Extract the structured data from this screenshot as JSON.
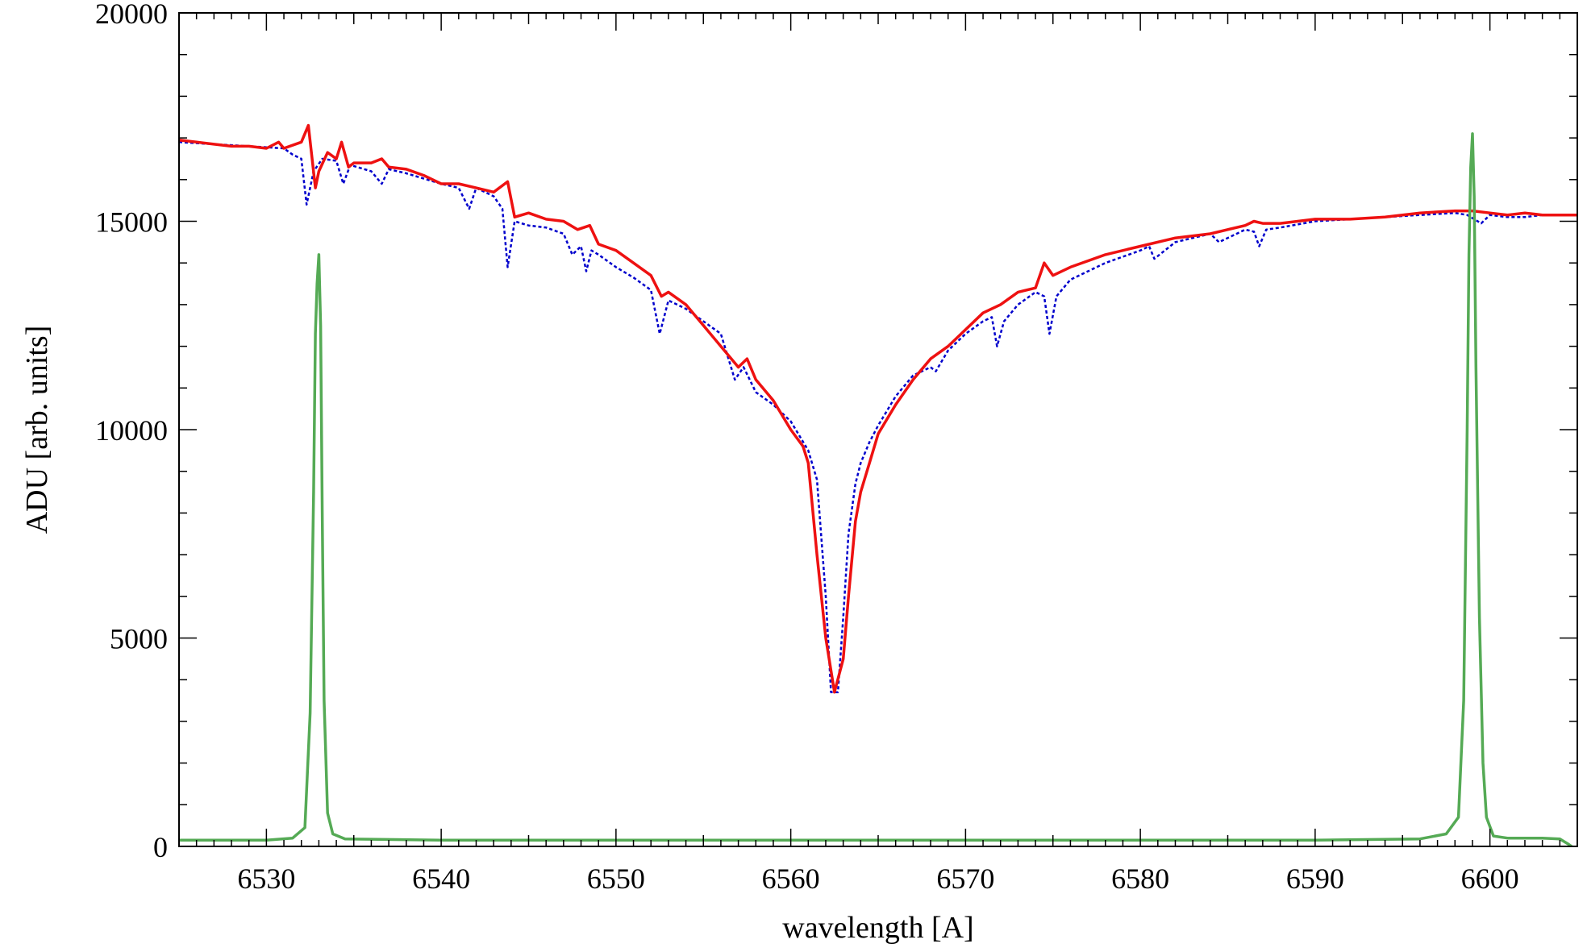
{
  "chart_data": {
    "type": "line",
    "title": "",
    "xlabel": "wavelength [A]",
    "ylabel": "ADU [arb. units]",
    "xlim": [
      6525,
      6605
    ],
    "ylim": [
      0,
      20000
    ],
    "xticks": [
      6530,
      6540,
      6550,
      6560,
      6570,
      6580,
      6590,
      6600
    ],
    "yticks": [
      0,
      5000,
      10000,
      15000,
      20000
    ],
    "grid": false,
    "legend": "none",
    "series": [
      {
        "color": "#0000cc",
        "style": "dotted",
        "x": [
          6525,
          6527,
          6529,
          6531,
          6531.5,
          6532,
          6532.3,
          6532.7,
          6533.2,
          6534,
          6534.4,
          6534.8,
          6536,
          6536.6,
          6537,
          6538,
          6540,
          6541,
          6541.6,
          6542,
          6543,
          6543.5,
          6543.8,
          6544.2,
          6545,
          6546,
          6547,
          6547.5,
          6548,
          6548.3,
          6548.6,
          6549,
          6550,
          6551,
          6552,
          6552.5,
          6553,
          6554,
          6555,
          6556,
          6556.8,
          6557.3,
          6558,
          6559,
          6560,
          6561,
          6561.5,
          6562,
          6562.3,
          6562.7,
          6563,
          6563.3,
          6563.7,
          6564,
          6564.5,
          6565,
          6566,
          6567,
          6568,
          6568.3,
          6569,
          6570,
          6571,
          6571.5,
          6571.8,
          6572.2,
          6573,
          6574,
          6574.5,
          6574.8,
          6575.2,
          6576,
          6578,
          6580,
          6580.5,
          6580.8,
          6582,
          6584,
          6584.5,
          6586,
          6586.5,
          6586.8,
          6587.2,
          6588,
          6590,
          6592,
          6594,
          6596,
          6598,
          6598.7,
          6599.5,
          6600,
          6601,
          6602,
          6603,
          6605
        ],
        "y": [
          16900,
          16850,
          16800,
          16750,
          16600,
          16500,
          15400,
          16200,
          16500,
          16450,
          15900,
          16350,
          16200,
          15900,
          16250,
          16150,
          15900,
          15800,
          15300,
          15800,
          15600,
          15300,
          13900,
          15000,
          14900,
          14850,
          14700,
          14200,
          14400,
          13800,
          14300,
          14200,
          13900,
          13650,
          13350,
          12300,
          13100,
          12900,
          12600,
          12300,
          11200,
          11500,
          10900,
          10600,
          10200,
          9500,
          8800,
          6000,
          3700,
          3700,
          5500,
          7500,
          8700,
          9200,
          9700,
          10100,
          10800,
          11300,
          11500,
          11400,
          11900,
          12300,
          12600,
          12700,
          12000,
          12600,
          13000,
          13300,
          13200,
          12300,
          13200,
          13600,
          14000,
          14300,
          14400,
          14100,
          14500,
          14700,
          14500,
          14800,
          14750,
          14400,
          14800,
          14850,
          15000,
          15050,
          15100,
          15150,
          15200,
          15150,
          14950,
          15150,
          15100,
          15100,
          15150,
          15150
        ]
      },
      {
        "color": "#ee1111",
        "style": "solid",
        "x": [
          6525,
          6526,
          6527,
          6528,
          6529,
          6530,
          6530.7,
          6531,
          6532,
          6532.4,
          6532.8,
          6533,
          6533.5,
          6534,
          6534.3,
          6534.7,
          6535,
          6536,
          6536.6,
          6537,
          6538,
          6539,
          6540,
          6541,
          6542,
          6543,
          6543.8,
          6544.2,
          6545,
          6546,
          6547,
          6547.8,
          6548.5,
          6549,
          6550,
          6551,
          6552,
          6552.6,
          6553,
          6554,
          6555,
          6556,
          6557,
          6557.5,
          6558,
          6559,
          6560,
          6560.7,
          6561,
          6561.5,
          6562,
          6562.5,
          6563,
          6563.3,
          6563.7,
          6564,
          6564.5,
          6565,
          6566,
          6567,
          6568,
          6569,
          6570,
          6571,
          6572,
          6573,
          6574,
          6574.5,
          6575,
          6576,
          6578,
          6580,
          6582,
          6584,
          6585,
          6586,
          6586.5,
          6587,
          6588,
          6590,
          6592,
          6594,
          6596,
          6598,
          6599,
          6600,
          6601,
          6602,
          6603,
          6605
        ],
        "y": [
          16950,
          16900,
          16850,
          16800,
          16800,
          16750,
          16900,
          16750,
          16900,
          17300,
          15800,
          16200,
          16650,
          16500,
          16900,
          16300,
          16400,
          16400,
          16500,
          16300,
          16250,
          16100,
          15900,
          15900,
          15800,
          15700,
          15950,
          15100,
          15200,
          15050,
          15000,
          14800,
          14900,
          14450,
          14300,
          14000,
          13700,
          13200,
          13300,
          13000,
          12500,
          12000,
          11500,
          11700,
          11200,
          10700,
          10000,
          9600,
          9200,
          7000,
          5000,
          3700,
          4500,
          6000,
          7800,
          8500,
          9200,
          9900,
          10600,
          11200,
          11700,
          12000,
          12400,
          12800,
          13000,
          13300,
          13400,
          14000,
          13700,
          13900,
          14200,
          14400,
          14600,
          14700,
          14800,
          14900,
          15000,
          14950,
          14950,
          15050,
          15050,
          15100,
          15200,
          15250,
          15250,
          15200,
          15150,
          15200,
          15150,
          15150
        ]
      },
      {
        "color": "#55aa55",
        "style": "solid",
        "x": [
          6525,
          6530,
          6531.5,
          6532.2,
          6532.5,
          6532.7,
          6532.8,
          6532.9,
          6533,
          6533.1,
          6533.2,
          6533.3,
          6533.5,
          6533.8,
          6534.5,
          6540,
          6550,
          6560,
          6570,
          6580,
          6590,
          6596,
          6597.5,
          6598.2,
          6598.5,
          6598.7,
          6598.8,
          6598.9,
          6599,
          6599.1,
          6599.2,
          6599.4,
          6599.6,
          6599.8,
          6600.2,
          6601,
          6603,
          6604,
          6604.5,
          6605
        ],
        "y": [
          150,
          150,
          200,
          450,
          3200,
          8500,
          12300,
          13500,
          14200,
          12500,
          7800,
          3500,
          800,
          300,
          180,
          150,
          150,
          150,
          150,
          150,
          150,
          180,
          300,
          700,
          3500,
          10000,
          14200,
          16300,
          17100,
          15600,
          11500,
          5500,
          2000,
          700,
          250,
          200,
          200,
          180,
          50,
          -100
        ]
      }
    ]
  }
}
